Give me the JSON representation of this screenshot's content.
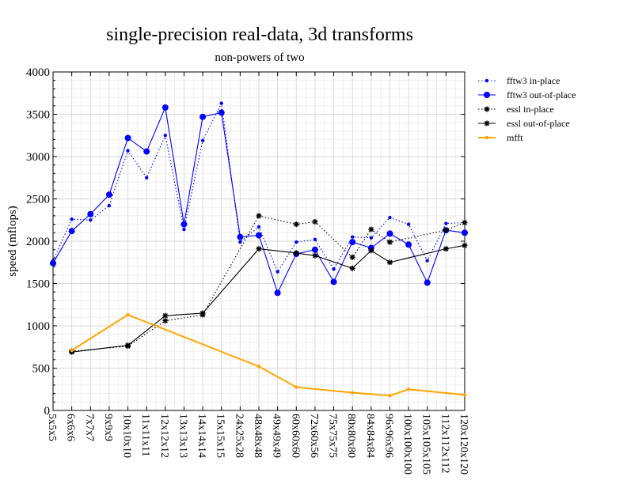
{
  "chart_data": {
    "type": "line",
    "title": "single-precision real-data, 3d transforms",
    "subtitle": "non-powers of two",
    "xlabel": "",
    "ylabel": "speed (mflops)",
    "ylim": [
      0,
      4000
    ],
    "yticks": [
      0,
      500,
      1000,
      1500,
      2000,
      2500,
      3000,
      3500,
      4000
    ],
    "grid": true,
    "legend_position": "top-right",
    "categories": [
      "5x5x5",
      "6x6x6",
      "7x7x7",
      "9x9x9",
      "10x10x10",
      "11x11x11",
      "12x12x12",
      "13x13x13",
      "14x14x14",
      "15x15x15",
      "24x25x28",
      "48x48x48",
      "49x49x49",
      "60x60x60",
      "72x60x56",
      "75x75x75",
      "80x80x80",
      "84x84x84",
      "96x96x96",
      "100x100x100",
      "105x105x105",
      "112x112x112",
      "120x120x120"
    ],
    "series": [
      {
        "name": "fftw3 in-place",
        "color": "#0000ff",
        "line": "dotted",
        "marker": "small-dot",
        "values": [
          1770,
          2260,
          2250,
          2420,
          3070,
          2750,
          3250,
          2140,
          3190,
          3630,
          1990,
          2170,
          1640,
          1990,
          2020,
          1670,
          2050,
          2040,
          2280,
          2200,
          1770,
          2210,
          2220
        ]
      },
      {
        "name": "fftw3 out-of-place",
        "color": "#0000ff",
        "line": "solid",
        "marker": "big-dot",
        "values": [
          1740,
          2120,
          2320,
          2550,
          3220,
          3060,
          3580,
          2200,
          3470,
          3520,
          2050,
          2070,
          1390,
          1850,
          1900,
          1520,
          1990,
          1920,
          2090,
          1960,
          1510,
          2130,
          2100
        ]
      },
      {
        "name": "essl in-place",
        "color": "#000000",
        "line": "dotted",
        "marker": "star",
        "values": [
          null,
          700,
          null,
          null,
          760,
          null,
          1060,
          null,
          1130,
          null,
          null,
          2300,
          null,
          2200,
          2230,
          null,
          1810,
          2140,
          1990,
          null,
          null,
          2130,
          2220
        ]
      },
      {
        "name": "essl out-of-place",
        "color": "#000000",
        "line": "solid",
        "marker": "star",
        "values": [
          null,
          690,
          null,
          null,
          770,
          null,
          1120,
          null,
          1150,
          null,
          null,
          1910,
          null,
          1860,
          1830,
          null,
          1680,
          1890,
          1750,
          null,
          null,
          1910,
          1950
        ]
      },
      {
        "name": "mfft",
        "color": "#ffa500",
        "line": "solid",
        "marker": "small-dot",
        "values": [
          null,
          710,
          null,
          null,
          1130,
          null,
          null,
          null,
          null,
          null,
          null,
          520,
          null,
          275,
          null,
          null,
          210,
          null,
          175,
          250,
          null,
          null,
          185
        ]
      }
    ]
  }
}
